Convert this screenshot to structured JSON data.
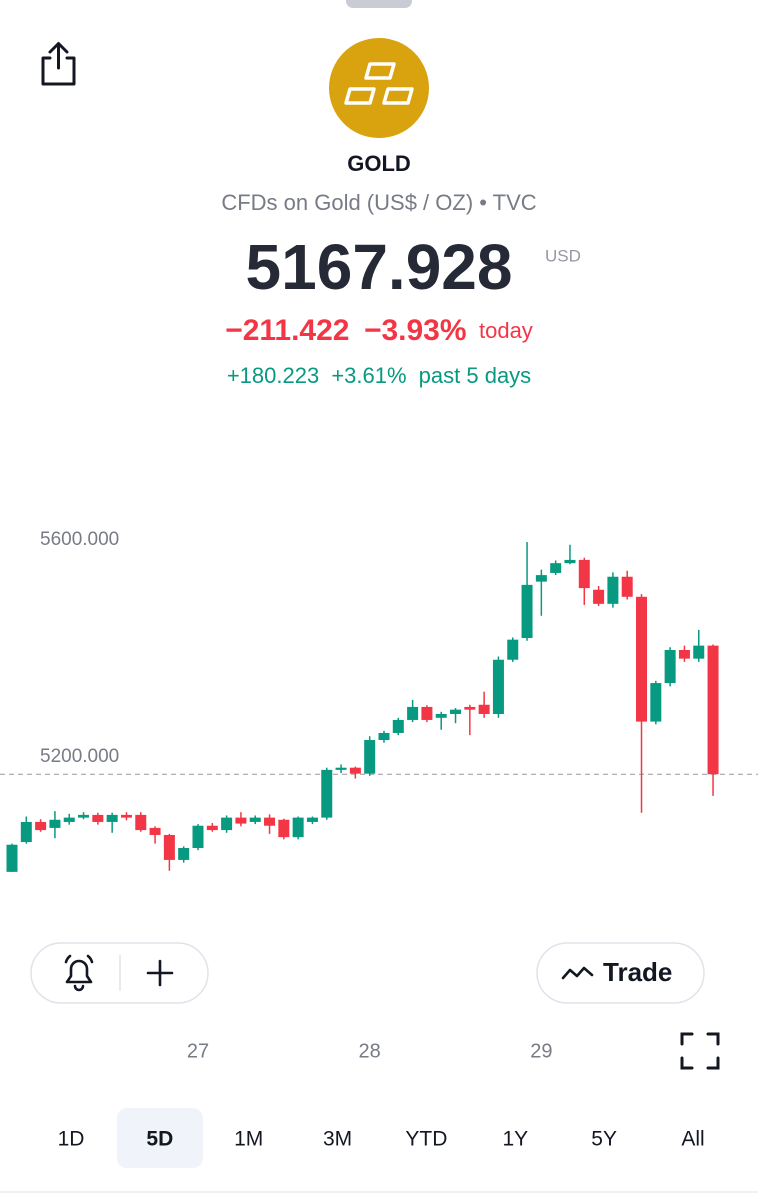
{
  "header": {
    "symbol": "GOLD",
    "description": "CFDs on Gold (US$ / OZ) • TVC",
    "price": 5167.928,
    "currency": "USD",
    "change_today": "−211.422",
    "change_today_pct": "−3.93%",
    "today_label": "today",
    "change_period": "+180.223",
    "change_period_pct": "+3.61%",
    "period_label": "past 5 days"
  },
  "buttons": {
    "trade": "Trade"
  },
  "timeframes": [
    "1D",
    "5D",
    "1M",
    "3M",
    "YTD",
    "1Y",
    "5Y",
    "All"
  ],
  "selected_timeframe": 1,
  "chart_data": {
    "type": "candlestick",
    "categories": [
      null,
      null,
      null,
      null,
      null,
      null,
      null,
      null,
      null,
      null,
      null,
      null,
      null,
      "27",
      null,
      null,
      null,
      null,
      null,
      null,
      null,
      null,
      null,
      null,
      null,
      "28",
      null,
      null,
      null,
      null,
      null,
      null,
      null,
      null,
      null,
      null,
      null,
      "29",
      null,
      null,
      null,
      null,
      null,
      null,
      null,
      null,
      null,
      null,
      null,
      null
    ],
    "open": [
      4988,
      5043,
      5080,
      5069,
      5080,
      5088,
      5093,
      5080,
      5093,
      5093,
      5069,
      5056,
      5010,
      5032,
      5073,
      5065,
      5088,
      5080,
      5088,
      5084,
      5052,
      5080,
      5088,
      5176,
      5180,
      5169,
      5231,
      5244,
      5268,
      5292,
      5272,
      5279,
      5292,
      5296,
      5279,
      5379,
      5419,
      5523,
      5539,
      5557,
      5563,
      5508,
      5482,
      5532,
      5495,
      5265,
      5336,
      5397,
      5381,
      5405
    ],
    "close": [
      5038,
      5080,
      5065,
      5084,
      5088,
      5093,
      5080,
      5093,
      5088,
      5065,
      5056,
      5010,
      5032,
      5073,
      5065,
      5088,
      5077,
      5088,
      5073,
      5052,
      5088,
      5088,
      5176,
      5180,
      5169,
      5231,
      5244,
      5268,
      5292,
      5268,
      5279,
      5287,
      5287,
      5279,
      5379,
      5416,
      5517,
      5535,
      5557,
      5563,
      5511,
      5482,
      5532,
      5495,
      5265,
      5336,
      5397,
      5381,
      5405,
      5167.928
    ],
    "high": [
      5040,
      5090,
      5085,
      5100,
      5095,
      5098,
      5097,
      5097,
      5098,
      5098,
      5072,
      5058,
      5035,
      5076,
      5078,
      5092,
      5098,
      5092,
      5094,
      5086,
      5090,
      5090,
      5180,
      5186,
      5182,
      5238,
      5248,
      5272,
      5305,
      5295,
      5283,
      5290,
      5296,
      5320,
      5385,
      5420,
      5596,
      5545,
      5562,
      5591,
      5567,
      5515,
      5540,
      5543,
      5500,
      5340,
      5402,
      5405,
      5434,
      5407
    ],
    "low": [
      4988,
      5040,
      5062,
      5050,
      5075,
      5085,
      5075,
      5060,
      5083,
      5062,
      5040,
      4990,
      5005,
      5028,
      5062,
      5060,
      5072,
      5076,
      5058,
      5048,
      5048,
      5076,
      5084,
      5170,
      5160,
      5165,
      5226,
      5240,
      5264,
      5264,
      5250,
      5262,
      5240,
      5272,
      5272,
      5375,
      5414,
      5460,
      5535,
      5555,
      5480,
      5478,
      5475,
      5490,
      5097,
      5260,
      5330,
      5375,
      5375,
      5128
    ],
    "up_color": "#089981",
    "down_color": "#f23645",
    "ylim": [
      4973,
      5655
    ],
    "yticks": [
      {
        "value": 5600,
        "label": "5600.000"
      },
      {
        "value": 5200,
        "label": "5200.000"
      }
    ]
  }
}
